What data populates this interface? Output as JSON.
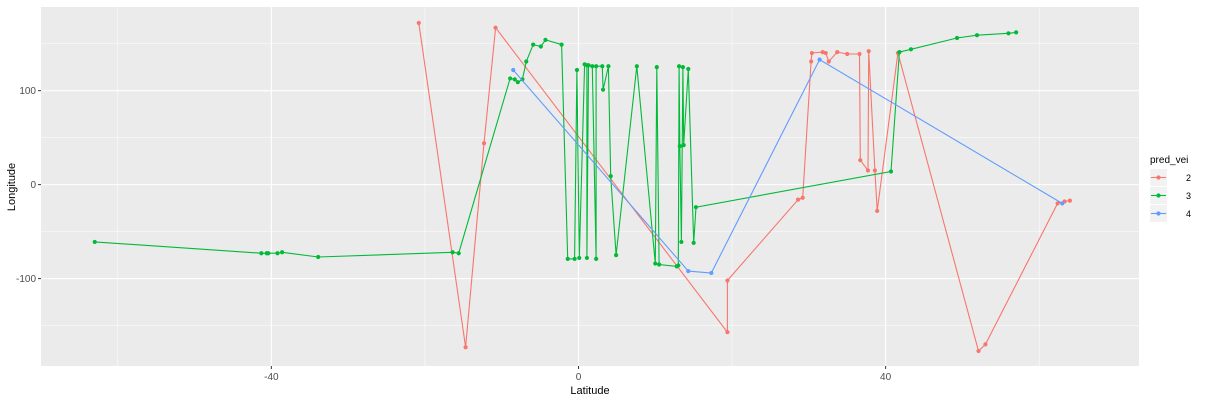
{
  "chart_data": {
    "type": "line",
    "xlabel": "Latitude",
    "ylabel": "Longitude",
    "xlim": [
      -70,
      73
    ],
    "ylim": [
      -193,
      189
    ],
    "x_ticks": [
      -40,
      0,
      40
    ],
    "y_ticks": [
      -100,
      0,
      100
    ],
    "x_tick_labels": [
      "-40",
      "0",
      "40"
    ],
    "y_tick_labels": [
      "-100",
      "0",
      "100"
    ],
    "grid": true,
    "panel_background": "#ebebeb",
    "legend": {
      "title": "pred_vei",
      "position": "right"
    },
    "series": [
      {
        "name": "2",
        "color": "#f8766d",
        "points": [
          [
            -20.8,
            172
          ],
          [
            -14.7,
            -173
          ],
          [
            -12.3,
            44
          ],
          [
            -10.8,
            167
          ],
          [
            19.4,
            -157
          ],
          [
            19.4,
            -102
          ],
          [
            28.6,
            -16
          ],
          [
            29.2,
            -14
          ],
          [
            30.4,
            140
          ],
          [
            30.3,
            131
          ],
          [
            31.8,
            141
          ],
          [
            32.2,
            140
          ],
          [
            32.6,
            131
          ],
          [
            33.7,
            141
          ],
          [
            35.0,
            139
          ],
          [
            36.6,
            139
          ],
          [
            36.7,
            26
          ],
          [
            37.8,
            142
          ],
          [
            37.7,
            15
          ],
          [
            38.6,
            15
          ],
          [
            38.9,
            -28
          ],
          [
            41.6,
            140
          ],
          [
            52.1,
            -177
          ],
          [
            53.0,
            -170
          ],
          [
            62.4,
            -20
          ],
          [
            63.3,
            -18
          ],
          [
            64.0,
            -17
          ]
        ]
      },
      {
        "name": "3",
        "color": "#00ba38",
        "points": [
          [
            -63.0,
            -61
          ],
          [
            -41.3,
            -73
          ],
          [
            -40.6,
            -73
          ],
          [
            -40.4,
            -73
          ],
          [
            -39.2,
            -73
          ],
          [
            -38.6,
            -72
          ],
          [
            -33.9,
            -77
          ],
          [
            -16.4,
            -72
          ],
          [
            -15.6,
            -73
          ],
          [
            -8.9,
            113
          ],
          [
            -8.3,
            112
          ],
          [
            -7.9,
            109
          ],
          [
            -7.3,
            112
          ],
          [
            -6.8,
            131
          ],
          [
            -5.9,
            149
          ],
          [
            -4.9,
            147
          ],
          [
            -4.3,
            154
          ],
          [
            -2.2,
            149
          ],
          [
            -1.4,
            -79
          ],
          [
            -0.5,
            -79
          ],
          [
            -0.2,
            122
          ],
          [
            0.1,
            -78
          ],
          [
            0.8,
            128
          ],
          [
            1.1,
            127
          ],
          [
            1.1,
            -78
          ],
          [
            1.3,
            127
          ],
          [
            1.8,
            126
          ],
          [
            2.3,
            -79
          ],
          [
            2.3,
            126
          ],
          [
            3.1,
            126
          ],
          [
            3.2,
            101
          ],
          [
            3.9,
            126
          ],
          [
            4.2,
            9
          ],
          [
            4.9,
            -75
          ],
          [
            7.6,
            126
          ],
          [
            10.0,
            -84
          ],
          [
            10.2,
            125
          ],
          [
            10.5,
            -85
          ],
          [
            12.8,
            -87
          ],
          [
            13.0,
            -86
          ],
          [
            13.1,
            126
          ],
          [
            13.2,
            41
          ],
          [
            13.6,
            125
          ],
          [
            13.4,
            -61
          ],
          [
            13.7,
            42
          ],
          [
            14.3,
            123
          ],
          [
            15.0,
            -62
          ],
          [
            15.3,
            -24
          ],
          [
            40.7,
            14
          ],
          [
            41.8,
            141
          ],
          [
            43.3,
            144
          ],
          [
            49.3,
            156
          ],
          [
            51.9,
            159
          ],
          [
            56.0,
            161
          ],
          [
            57.0,
            162
          ]
        ]
      },
      {
        "name": "4",
        "color": "#619cff",
        "points": [
          [
            -8.5,
            122
          ],
          [
            14.3,
            -92
          ],
          [
            17.3,
            -94
          ],
          [
            31.4,
            133
          ],
          [
            63.0,
            -20
          ]
        ]
      }
    ]
  }
}
